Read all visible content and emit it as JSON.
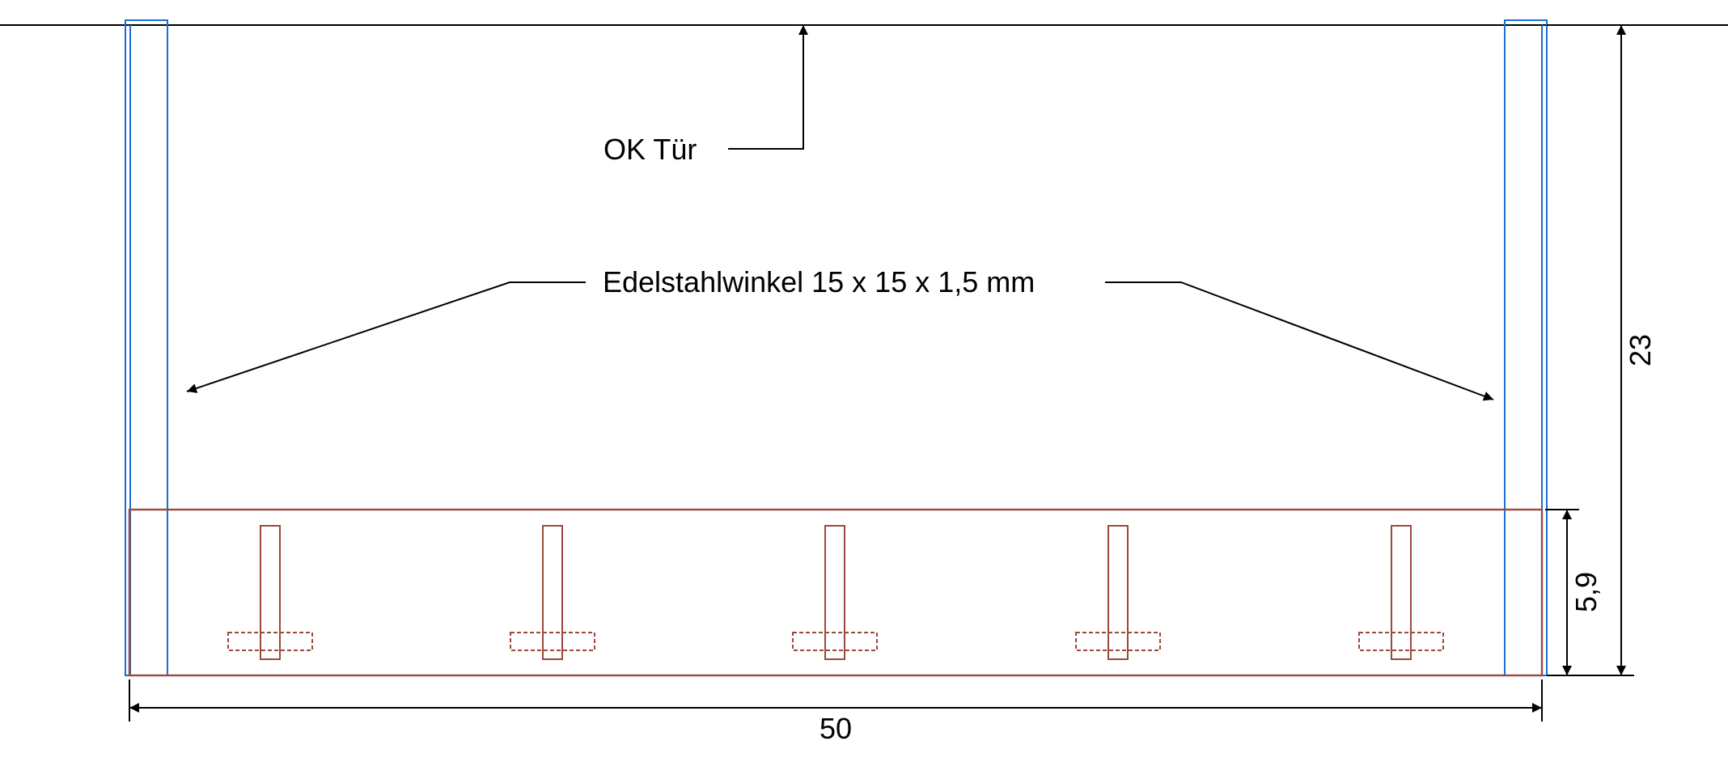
{
  "labels": {
    "door_top": "OK Tür",
    "angle_profile": "Edelstahlwinkel 15 x 15 x 1,5 mm"
  },
  "dimensions": {
    "width": "50",
    "total_height": "23",
    "rail_height": "5,9"
  },
  "hooks": {
    "count": 5
  },
  "colors": {
    "line": "#000000",
    "angle": "#1a6fd6",
    "rail": "#9a4a3a",
    "background": "#ffffff"
  }
}
